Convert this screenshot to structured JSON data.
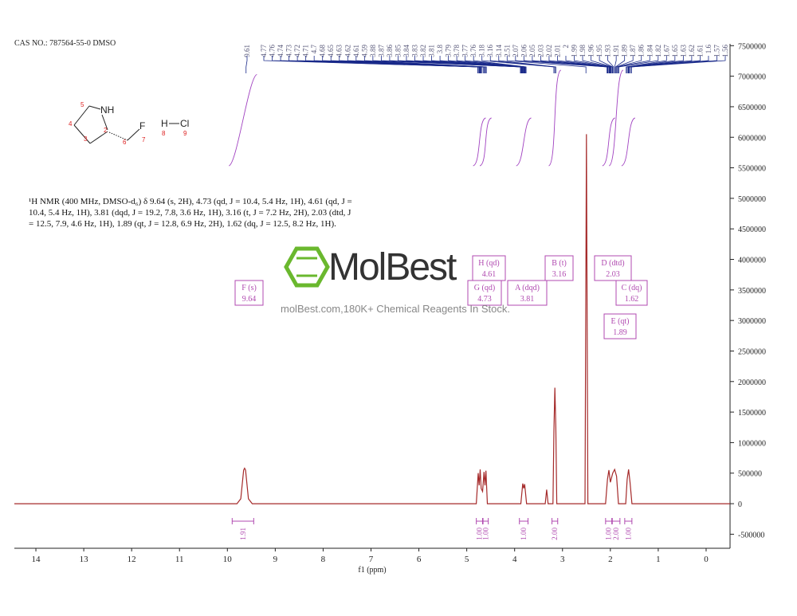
{
  "cas_label": "CAS NO.: 787564-55-0 DMSO",
  "nmr_description": "¹H NMR (400 MHz, DMSO-d₆) δ 9.64 (s, 2H), 4.73 (qd, J = 10.4, 5.4 Hz, 1H), 4.61 (qd, J = 10.4, 5.4 Hz, 1H), 3.81 (dqd, J = 19.2, 7.8, 3.6 Hz, 1H), 3.16 (t, J = 7.2 Hz, 2H), 2.03 (dtd, J = 12.5, 7.9, 4.6 Hz, 1H), 1.89 (qt, J = 12.8, 6.9 Hz, 2H), 1.62 (dq, J = 12.5, 8.2 Hz, 1H).",
  "watermark": {
    "name": "MolBest",
    "tagline": "molBest.com,180K+ Chemical Reagents In Stock."
  },
  "structure": {
    "atoms": {
      "nh": "NH",
      "f": "F",
      "h": "H",
      "cl": "Cl"
    },
    "locants": [
      "5",
      "4",
      "3",
      "2",
      "6",
      "7",
      "8",
      "9"
    ]
  },
  "chart_data": {
    "type": "line",
    "xlabel": "f1 (ppm)",
    "xlim": [
      14.45,
      -0.5
    ],
    "xticks": [
      14,
      13,
      12,
      11,
      10,
      9,
      8,
      7,
      6,
      5,
      4,
      3,
      2,
      1,
      0
    ],
    "ylim": [
      -730000,
      7530000
    ],
    "yticks": [
      -500000,
      0,
      500000,
      1000000,
      1500000,
      2000000,
      2500000,
      3000000,
      3500000,
      4000000,
      4500000,
      5000000,
      5500000,
      6000000,
      6500000,
      7000000,
      7500000
    ],
    "color": "#a52a2a",
    "x": [
      14.45,
      9.8,
      9.72,
      9.66,
      9.64,
      9.62,
      9.56,
      9.48,
      4.8,
      4.76,
      4.74,
      4.72,
      4.7,
      4.67,
      4.64,
      4.62,
      4.6,
      4.57,
      3.87,
      3.83,
      3.81,
      3.79,
      3.75,
      3.36,
      3.33,
      3.3,
      3.2,
      3.18,
      3.16,
      3.14,
      3.12,
      2.53,
      2.5,
      2.47,
      2.1,
      2.06,
      2.03,
      2.0,
      1.95,
      1.91,
      1.87,
      1.83,
      1.68,
      1.65,
      1.62,
      1.59,
      1.55,
      -0.5
    ],
    "values": [
      0,
      0,
      80000,
      550000,
      580000,
      550000,
      80000,
      0,
      0,
      500000,
      300000,
      560000,
      250000,
      200000,
      520000,
      300000,
      540000,
      0,
      0,
      330000,
      250000,
      320000,
      0,
      0,
      230000,
      0,
      0,
      1200000,
      1900000,
      1250000,
      0,
      0,
      6050000,
      0,
      0,
      400000,
      550000,
      350000,
      500000,
      560000,
      450000,
      0,
      0,
      400000,
      560000,
      350000,
      0,
      0
    ],
    "peak_list": [
      9.61,
      4.77,
      4.76,
      4.74,
      4.73,
      4.72,
      4.71,
      4.7,
      4.68,
      4.65,
      4.63,
      4.62,
      4.61,
      4.59,
      3.88,
      3.87,
      3.86,
      3.85,
      3.84,
      3.83,
      3.82,
      3.81,
      3.8,
      3.79,
      3.78,
      3.77,
      3.76,
      3.18,
      3.16,
      3.14,
      2.51,
      2.07,
      2.06,
      2.05,
      2.03,
      2.02,
      2.01,
      2.0,
      1.99,
      1.98,
      1.96,
      1.95,
      1.93,
      1.91,
      1.89,
      1.87,
      1.86,
      1.84,
      1.82,
      1.67,
      1.65,
      1.63,
      1.62,
      1.61,
      1.6,
      1.57,
      1.56
    ],
    "multiplets": [
      {
        "label": "F (s)",
        "shift": 9.64
      },
      {
        "label": "H (qd)",
        "shift": 4.61
      },
      {
        "label": "G (qd)",
        "shift": 4.73
      },
      {
        "label": "A (dqd)",
        "shift": 3.81
      },
      {
        "label": "B (t)",
        "shift": 3.16
      },
      {
        "label": "D (dtd)",
        "shift": 2.03
      },
      {
        "label": "C (dq)",
        "shift": 1.62
      },
      {
        "label": "E (qt)",
        "shift": 1.89
      }
    ],
    "integrals": {
      "ranges": [
        [
          9.9,
          9.45
        ],
        [
          4.8,
          4.67
        ],
        [
          4.66,
          4.55
        ],
        [
          3.9,
          3.72
        ],
        [
          3.22,
          3.1
        ],
        [
          2.1,
          1.97
        ],
        [
          1.96,
          1.8
        ],
        [
          1.7,
          1.55
        ]
      ],
      "values": [
        1.91,
        1,
        1,
        1,
        2,
        1,
        2,
        1
      ],
      "value_labels": [
        "1.91",
        "1.00",
        "1.00",
        "1.00",
        "2.00",
        "1.00",
        "2.00",
        "1.00"
      ]
    }
  }
}
